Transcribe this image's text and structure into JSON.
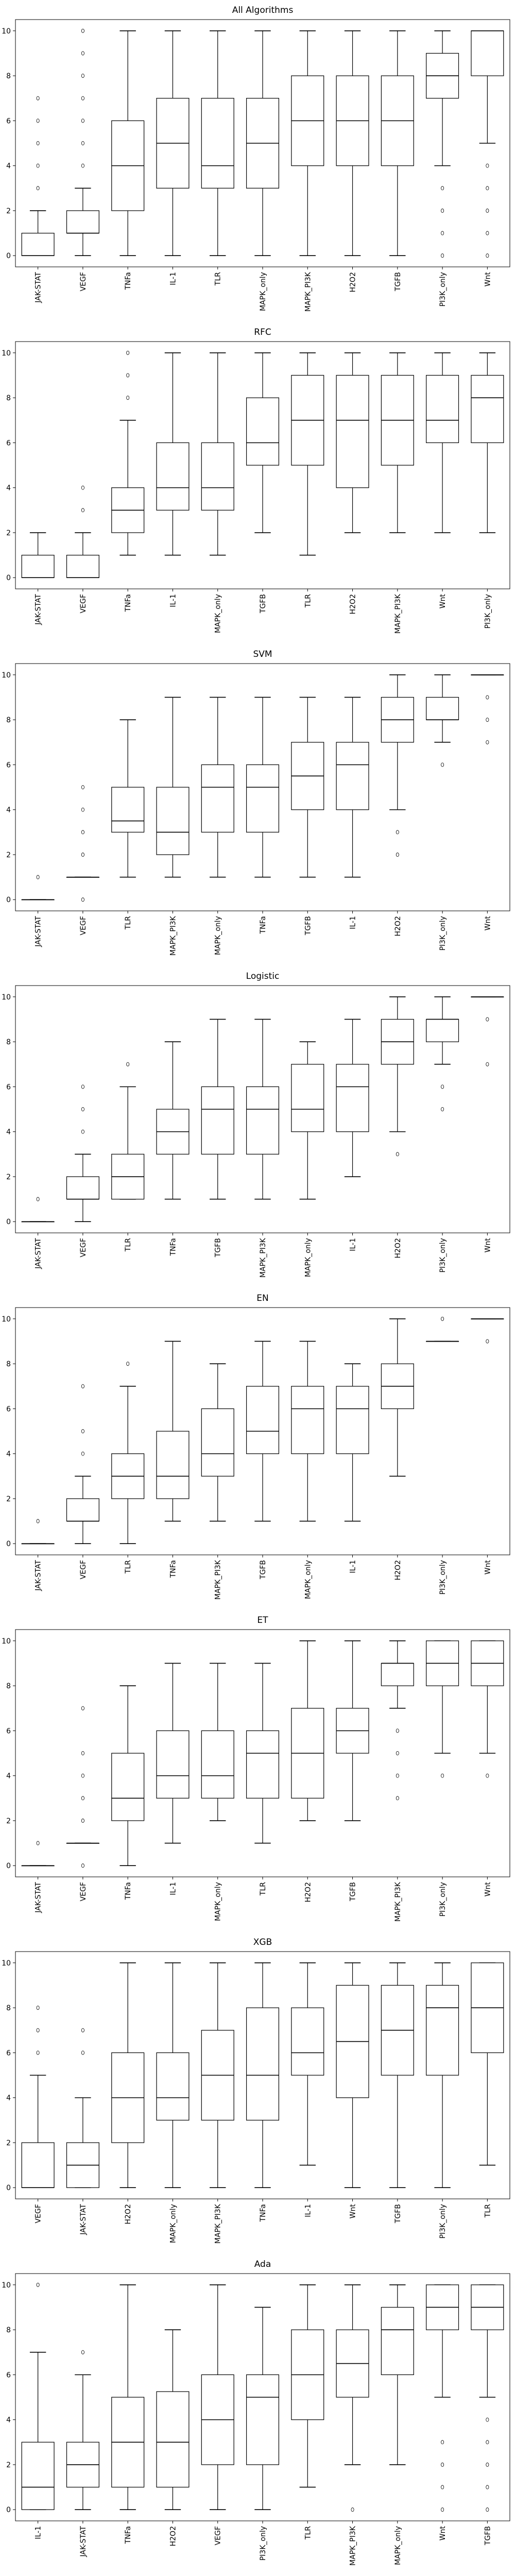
{
  "chart_data": [
    {
      "type": "box",
      "title": "All Algorithms",
      "ylim": [
        -0.5,
        10.5
      ],
      "yticks": [
        0,
        2,
        4,
        6,
        8,
        10
      ],
      "boxes": [
        {
          "label": "JAK-STAT",
          "q1": 0,
          "median": 0,
          "q3": 1,
          "whislo": 0,
          "whishi": 2,
          "fliers": [
            3,
            4,
            5,
            6,
            7
          ]
        },
        {
          "label": "VEGF",
          "q1": 1,
          "median": 1,
          "q3": 2,
          "whislo": 0,
          "whishi": 3,
          "fliers": [
            4,
            5,
            6,
            7,
            8,
            9,
            10
          ]
        },
        {
          "label": "TNFa",
          "q1": 2,
          "median": 4,
          "q3": 6,
          "whislo": 0,
          "whishi": 10,
          "fliers": []
        },
        {
          "label": "IL-1",
          "q1": 3,
          "median": 5,
          "q3": 7,
          "whislo": 0,
          "whishi": 10,
          "fliers": []
        },
        {
          "label": "TLR",
          "q1": 3,
          "median": 4,
          "q3": 7,
          "whislo": 0,
          "whishi": 10,
          "fliers": []
        },
        {
          "label": "MAPK_only",
          "q1": 3,
          "median": 5,
          "q3": 7,
          "whislo": 0,
          "whishi": 10,
          "fliers": []
        },
        {
          "label": "MAPK_PI3K",
          "q1": 4,
          "median": 6,
          "q3": 8,
          "whislo": 0,
          "whishi": 10,
          "fliers": []
        },
        {
          "label": "H2O2",
          "q1": 4,
          "median": 6,
          "q3": 8,
          "whislo": 0,
          "whishi": 10,
          "fliers": []
        },
        {
          "label": "TGFB",
          "q1": 4,
          "median": 6,
          "q3": 8,
          "whislo": 0,
          "whishi": 10,
          "fliers": []
        },
        {
          "label": "PI3K_only",
          "q1": 7,
          "median": 8,
          "q3": 9,
          "whislo": 4,
          "whishi": 10,
          "fliers": [
            0,
            1,
            2,
            3
          ]
        },
        {
          "label": "Wnt",
          "q1": 8,
          "median": 10,
          "q3": 10,
          "whislo": 5,
          "whishi": 10,
          "fliers": [
            0,
            1,
            2,
            3,
            4
          ]
        }
      ]
    },
    {
      "type": "box",
      "title": "RFC",
      "ylim": [
        -0.5,
        10.5
      ],
      "yticks": [
        0,
        2,
        4,
        6,
        8,
        10
      ],
      "boxes": [
        {
          "label": "JAK-STAT",
          "q1": 0,
          "median": 0,
          "q3": 1,
          "whislo": 0,
          "whishi": 2,
          "fliers": []
        },
        {
          "label": "VEGF",
          "q1": 0,
          "median": 0,
          "q3": 1,
          "whislo": 0,
          "whishi": 2,
          "fliers": [
            3,
            4
          ]
        },
        {
          "label": "TNFa",
          "q1": 2,
          "median": 3,
          "q3": 4,
          "whislo": 1,
          "whishi": 7,
          "fliers": [
            8,
            9,
            10
          ]
        },
        {
          "label": "IL-1",
          "q1": 3,
          "median": 4,
          "q3": 6,
          "whislo": 1,
          "whishi": 10,
          "fliers": []
        },
        {
          "label": "MAPK_only",
          "q1": 3,
          "median": 4,
          "q3": 6,
          "whislo": 1,
          "whishi": 10,
          "fliers": []
        },
        {
          "label": "TGFB",
          "q1": 5,
          "median": 6,
          "q3": 8,
          "whislo": 2,
          "whishi": 10,
          "fliers": []
        },
        {
          "label": "TLR",
          "q1": 5,
          "median": 7,
          "q3": 9,
          "whislo": 1,
          "whishi": 10,
          "fliers": []
        },
        {
          "label": "H2O2",
          "q1": 4,
          "median": 7,
          "q3": 9,
          "whislo": 2,
          "whishi": 10,
          "fliers": []
        },
        {
          "label": "MAPK_PI3K",
          "q1": 5,
          "median": 7,
          "q3": 9,
          "whislo": 2,
          "whishi": 10,
          "fliers": []
        },
        {
          "label": "Wnt",
          "q1": 6,
          "median": 7,
          "q3": 9,
          "whislo": 2,
          "whishi": 10,
          "fliers": []
        },
        {
          "label": "PI3K_only",
          "q1": 6,
          "median": 8,
          "q3": 9,
          "whislo": 2,
          "whishi": 10,
          "fliers": []
        }
      ]
    },
    {
      "type": "box",
      "title": "SVM",
      "ylim": [
        -0.5,
        10.5
      ],
      "yticks": [
        0,
        2,
        4,
        6,
        8,
        10
      ],
      "boxes": [
        {
          "label": "JAK-STAT",
          "q1": 0,
          "median": 0,
          "q3": 0,
          "whislo": 0,
          "whishi": 0,
          "fliers": [
            1
          ]
        },
        {
          "label": "VEGF",
          "q1": 1,
          "median": 1,
          "q3": 1,
          "whislo": 1,
          "whishi": 1,
          "fliers": [
            0,
            2,
            3,
            4,
            5
          ]
        },
        {
          "label": "TLR",
          "q1": 3,
          "median": 3.5,
          "q3": 5,
          "whislo": 1,
          "whishi": 8,
          "fliers": []
        },
        {
          "label": "MAPK_PI3K",
          "q1": 2,
          "median": 3,
          "q3": 5,
          "whislo": 1,
          "whishi": 9,
          "fliers": []
        },
        {
          "label": "MAPK_only",
          "q1": 3,
          "median": 5,
          "q3": 6,
          "whislo": 1,
          "whishi": 9,
          "fliers": []
        },
        {
          "label": "TNFa",
          "q1": 3,
          "median": 5,
          "q3": 6,
          "whislo": 1,
          "whishi": 9,
          "fliers": []
        },
        {
          "label": "TGFB",
          "q1": 4,
          "median": 5.5,
          "q3": 7,
          "whislo": 1,
          "whishi": 9,
          "fliers": []
        },
        {
          "label": "IL-1",
          "q1": 4,
          "median": 6,
          "q3": 7,
          "whislo": 1,
          "whishi": 9,
          "fliers": []
        },
        {
          "label": "H2O2",
          "q1": 7,
          "median": 8,
          "q3": 9,
          "whislo": 4,
          "whishi": 10,
          "fliers": [
            2,
            3
          ]
        },
        {
          "label": "PI3K_only",
          "q1": 8,
          "median": 8,
          "q3": 9,
          "whislo": 7,
          "whishi": 10,
          "fliers": [
            6
          ]
        },
        {
          "label": "Wnt",
          "q1": 10,
          "median": 10,
          "q3": 10,
          "whislo": 10,
          "whishi": 10,
          "fliers": [
            7,
            8,
            9
          ]
        }
      ]
    },
    {
      "type": "box",
      "title": "Logistic",
      "ylim": [
        -0.5,
        10.5
      ],
      "yticks": [
        0,
        2,
        4,
        6,
        8,
        10
      ],
      "boxes": [
        {
          "label": "JAK-STAT",
          "q1": 0,
          "median": 0,
          "q3": 0,
          "whislo": 0,
          "whishi": 0,
          "fliers": [
            1
          ]
        },
        {
          "label": "VEGF",
          "q1": 1,
          "median": 1,
          "q3": 2,
          "whislo": 0,
          "whishi": 3,
          "fliers": [
            4,
            5,
            6
          ]
        },
        {
          "label": "TLR",
          "q1": 1,
          "median": 2,
          "q3": 3,
          "whislo": 1,
          "whishi": 6,
          "fliers": [
            7
          ]
        },
        {
          "label": "TNFa",
          "q1": 3,
          "median": 4,
          "q3": 5,
          "whislo": 1,
          "whishi": 8,
          "fliers": []
        },
        {
          "label": "TGFB",
          "q1": 3,
          "median": 5,
          "q3": 6,
          "whislo": 1,
          "whishi": 9,
          "fliers": []
        },
        {
          "label": "MAPK_PI3K",
          "q1": 3,
          "median": 5,
          "q3": 6,
          "whislo": 1,
          "whishi": 9,
          "fliers": []
        },
        {
          "label": "MAPK_only",
          "q1": 4,
          "median": 5,
          "q3": 7,
          "whislo": 1,
          "whishi": 8,
          "fliers": []
        },
        {
          "label": "IL-1",
          "q1": 4,
          "median": 6,
          "q3": 7,
          "whislo": 2,
          "whishi": 9,
          "fliers": []
        },
        {
          "label": "H2O2",
          "q1": 7,
          "median": 8,
          "q3": 9,
          "whislo": 4,
          "whishi": 10,
          "fliers": [
            3
          ]
        },
        {
          "label": "PI3K_only",
          "q1": 8,
          "median": 9,
          "q3": 9,
          "whislo": 7,
          "whishi": 10,
          "fliers": [
            5,
            6
          ]
        },
        {
          "label": "Wnt",
          "q1": 10,
          "median": 10,
          "q3": 10,
          "whislo": 10,
          "whishi": 10,
          "fliers": [
            7,
            9
          ]
        }
      ]
    },
    {
      "type": "box",
      "title": "EN",
      "ylim": [
        -0.5,
        10.5
      ],
      "yticks": [
        0,
        2,
        4,
        6,
        8,
        10
      ],
      "boxes": [
        {
          "label": "JAK-STAT",
          "q1": 0,
          "median": 0,
          "q3": 0,
          "whislo": 0,
          "whishi": 0,
          "fliers": [
            1
          ]
        },
        {
          "label": "VEGF",
          "q1": 1,
          "median": 1,
          "q3": 2,
          "whislo": 0,
          "whishi": 3,
          "fliers": [
            4,
            5,
            7
          ]
        },
        {
          "label": "TLR",
          "q1": 2,
          "median": 3,
          "q3": 4,
          "whislo": 0,
          "whishi": 7,
          "fliers": [
            8
          ]
        },
        {
          "label": "TNFa",
          "q1": 2,
          "median": 3,
          "q3": 5,
          "whislo": 1,
          "whishi": 9,
          "fliers": []
        },
        {
          "label": "MAPK_PI3K",
          "q1": 3,
          "median": 4,
          "q3": 6,
          "whislo": 1,
          "whishi": 8,
          "fliers": []
        },
        {
          "label": "TGFB",
          "q1": 4,
          "median": 5,
          "q3": 7,
          "whislo": 1,
          "whishi": 9,
          "fliers": []
        },
        {
          "label": "MAPK_only",
          "q1": 4,
          "median": 6,
          "q3": 7,
          "whislo": 1,
          "whishi": 9,
          "fliers": []
        },
        {
          "label": "IL-1",
          "q1": 4,
          "median": 6,
          "q3": 7,
          "whislo": 1,
          "whishi": 8,
          "fliers": []
        },
        {
          "label": "H2O2",
          "q1": 6,
          "median": 7,
          "q3": 8,
          "whislo": 3,
          "whishi": 10,
          "fliers": []
        },
        {
          "label": "PI3K_only",
          "q1": 9,
          "median": 9,
          "q3": 9,
          "whislo": 9,
          "whishi": 9,
          "fliers": [
            10
          ]
        },
        {
          "label": "Wnt",
          "q1": 10,
          "median": 10,
          "q3": 10,
          "whislo": 10,
          "whishi": 10,
          "fliers": [
            9
          ]
        }
      ]
    },
    {
      "type": "box",
      "title": "ET",
      "ylim": [
        -0.5,
        10.5
      ],
      "yticks": [
        0,
        2,
        4,
        6,
        8,
        10
      ],
      "boxes": [
        {
          "label": "JAK-STAT",
          "q1": 0,
          "median": 0,
          "q3": 0,
          "whislo": 0,
          "whishi": 0,
          "fliers": [
            1
          ]
        },
        {
          "label": "VEGF",
          "q1": 1,
          "median": 1,
          "q3": 1,
          "whislo": 1,
          "whishi": 1,
          "fliers": [
            0,
            2,
            3,
            4,
            5,
            7
          ]
        },
        {
          "label": "TNFa",
          "q1": 2,
          "median": 3,
          "q3": 5,
          "whislo": 0,
          "whishi": 8,
          "fliers": []
        },
        {
          "label": "IL-1",
          "q1": 3,
          "median": 4,
          "q3": 6,
          "whislo": 1,
          "whishi": 9,
          "fliers": []
        },
        {
          "label": "MAPK_only",
          "q1": 3,
          "median": 4,
          "q3": 6,
          "whislo": 2,
          "whishi": 9,
          "fliers": []
        },
        {
          "label": "TLR",
          "q1": 3,
          "median": 5,
          "q3": 6,
          "whislo": 1,
          "whishi": 9,
          "fliers": []
        },
        {
          "label": "H2O2",
          "q1": 3,
          "median": 5,
          "q3": 7,
          "whislo": 2,
          "whishi": 10,
          "fliers": []
        },
        {
          "label": "TGFB",
          "q1": 5,
          "median": 6,
          "q3": 7,
          "whislo": 2,
          "whishi": 10,
          "fliers": []
        },
        {
          "label": "MAPK_PI3K",
          "q1": 8,
          "median": 9,
          "q3": 9,
          "whislo": 7,
          "whishi": 10,
          "fliers": [
            3,
            4,
            5,
            6
          ]
        },
        {
          "label": "PI3K_only",
          "q1": 8,
          "median": 9,
          "q3": 10,
          "whislo": 5,
          "whishi": 10,
          "fliers": [
            4
          ]
        },
        {
          "label": "Wnt",
          "q1": 8,
          "median": 9,
          "q3": 10,
          "whislo": 5,
          "whishi": 10,
          "fliers": [
            4
          ]
        }
      ]
    },
    {
      "type": "box",
      "title": "XGB",
      "ylim": [
        -0.5,
        10.5
      ],
      "yticks": [
        0,
        2,
        4,
        6,
        8,
        10
      ],
      "boxes": [
        {
          "label": "VEGF",
          "q1": 0,
          "median": 0,
          "q3": 2,
          "whislo": 0,
          "whishi": 5,
          "fliers": [
            6,
            7,
            8
          ]
        },
        {
          "label": "JAK-STAT",
          "q1": 0,
          "median": 1,
          "q3": 2,
          "whislo": 0,
          "whishi": 4,
          "fliers": [
            6,
            7
          ]
        },
        {
          "label": "H2O2",
          "q1": 2,
          "median": 4,
          "q3": 6,
          "whislo": 0,
          "whishi": 10,
          "fliers": []
        },
        {
          "label": "MAPK_only",
          "q1": 3,
          "median": 4,
          "q3": 6,
          "whislo": 0,
          "whishi": 10,
          "fliers": []
        },
        {
          "label": "MAPK_PI3K",
          "q1": 3,
          "median": 5,
          "q3": 7,
          "whislo": 0,
          "whishi": 10,
          "fliers": []
        },
        {
          "label": "TNFa",
          "q1": 3,
          "median": 5,
          "q3": 8,
          "whislo": 0,
          "whishi": 10,
          "fliers": []
        },
        {
          "label": "IL-1",
          "q1": 5,
          "median": 6,
          "q3": 8,
          "whislo": 1,
          "whishi": 10,
          "fliers": []
        },
        {
          "label": "Wnt",
          "q1": 4,
          "median": 6.5,
          "q3": 9,
          "whislo": 0,
          "whishi": 10,
          "fliers": []
        },
        {
          "label": "TGFB",
          "q1": 5,
          "median": 7,
          "q3": 9,
          "whislo": 0,
          "whishi": 10,
          "fliers": []
        },
        {
          "label": "PI3K_only",
          "q1": 5,
          "median": 8,
          "q3": 9,
          "whislo": 0,
          "whishi": 10,
          "fliers": []
        },
        {
          "label": "TLR",
          "q1": 6,
          "median": 8,
          "q3": 10,
          "whislo": 1,
          "whishi": 10,
          "fliers": []
        }
      ]
    },
    {
      "type": "box",
      "title": "Ada",
      "ylim": [
        -0.5,
        10.5
      ],
      "yticks": [
        0,
        2,
        4,
        6,
        8,
        10
      ],
      "boxes": [
        {
          "label": "IL-1",
          "q1": 0,
          "median": 1,
          "q3": 3,
          "whislo": 0,
          "whishi": 7,
          "fliers": [
            10
          ]
        },
        {
          "label": "JAK-STAT",
          "q1": 1,
          "median": 2,
          "q3": 3,
          "whislo": 0,
          "whishi": 6,
          "fliers": [
            7
          ]
        },
        {
          "label": "TNFa",
          "q1": 1,
          "median": 3,
          "q3": 5,
          "whislo": 0,
          "whishi": 10,
          "fliers": []
        },
        {
          "label": "H2O2",
          "q1": 1,
          "median": 3,
          "q3": 5.25,
          "whislo": 0,
          "whishi": 8,
          "fliers": []
        },
        {
          "label": "VEGF",
          "q1": 2,
          "median": 4,
          "q3": 6,
          "whislo": 0,
          "whishi": 10,
          "fliers": []
        },
        {
          "label": "PI3K_only",
          "q1": 2,
          "median": 5,
          "q3": 6,
          "whislo": 0,
          "whishi": 9,
          "fliers": []
        },
        {
          "label": "TLR",
          "q1": 4,
          "median": 6,
          "q3": 8,
          "whislo": 1,
          "whishi": 10,
          "fliers": []
        },
        {
          "label": "MAPK_PI3K",
          "q1": 5,
          "median": 6.5,
          "q3": 8,
          "whislo": 2,
          "whishi": 10,
          "fliers": [
            0
          ]
        },
        {
          "label": "MAPK_only",
          "q1": 6,
          "median": 8,
          "q3": 9,
          "whislo": 2,
          "whishi": 10,
          "fliers": []
        },
        {
          "label": "Wnt",
          "q1": 8,
          "median": 9,
          "q3": 10,
          "whislo": 5,
          "whishi": 10,
          "fliers": [
            0,
            1,
            2,
            3
          ]
        },
        {
          "label": "TGFB",
          "q1": 8,
          "median": 9,
          "q3": 10,
          "whislo": 5,
          "whishi": 10,
          "fliers": [
            0,
            1,
            2,
            3,
            4
          ]
        }
      ]
    }
  ]
}
